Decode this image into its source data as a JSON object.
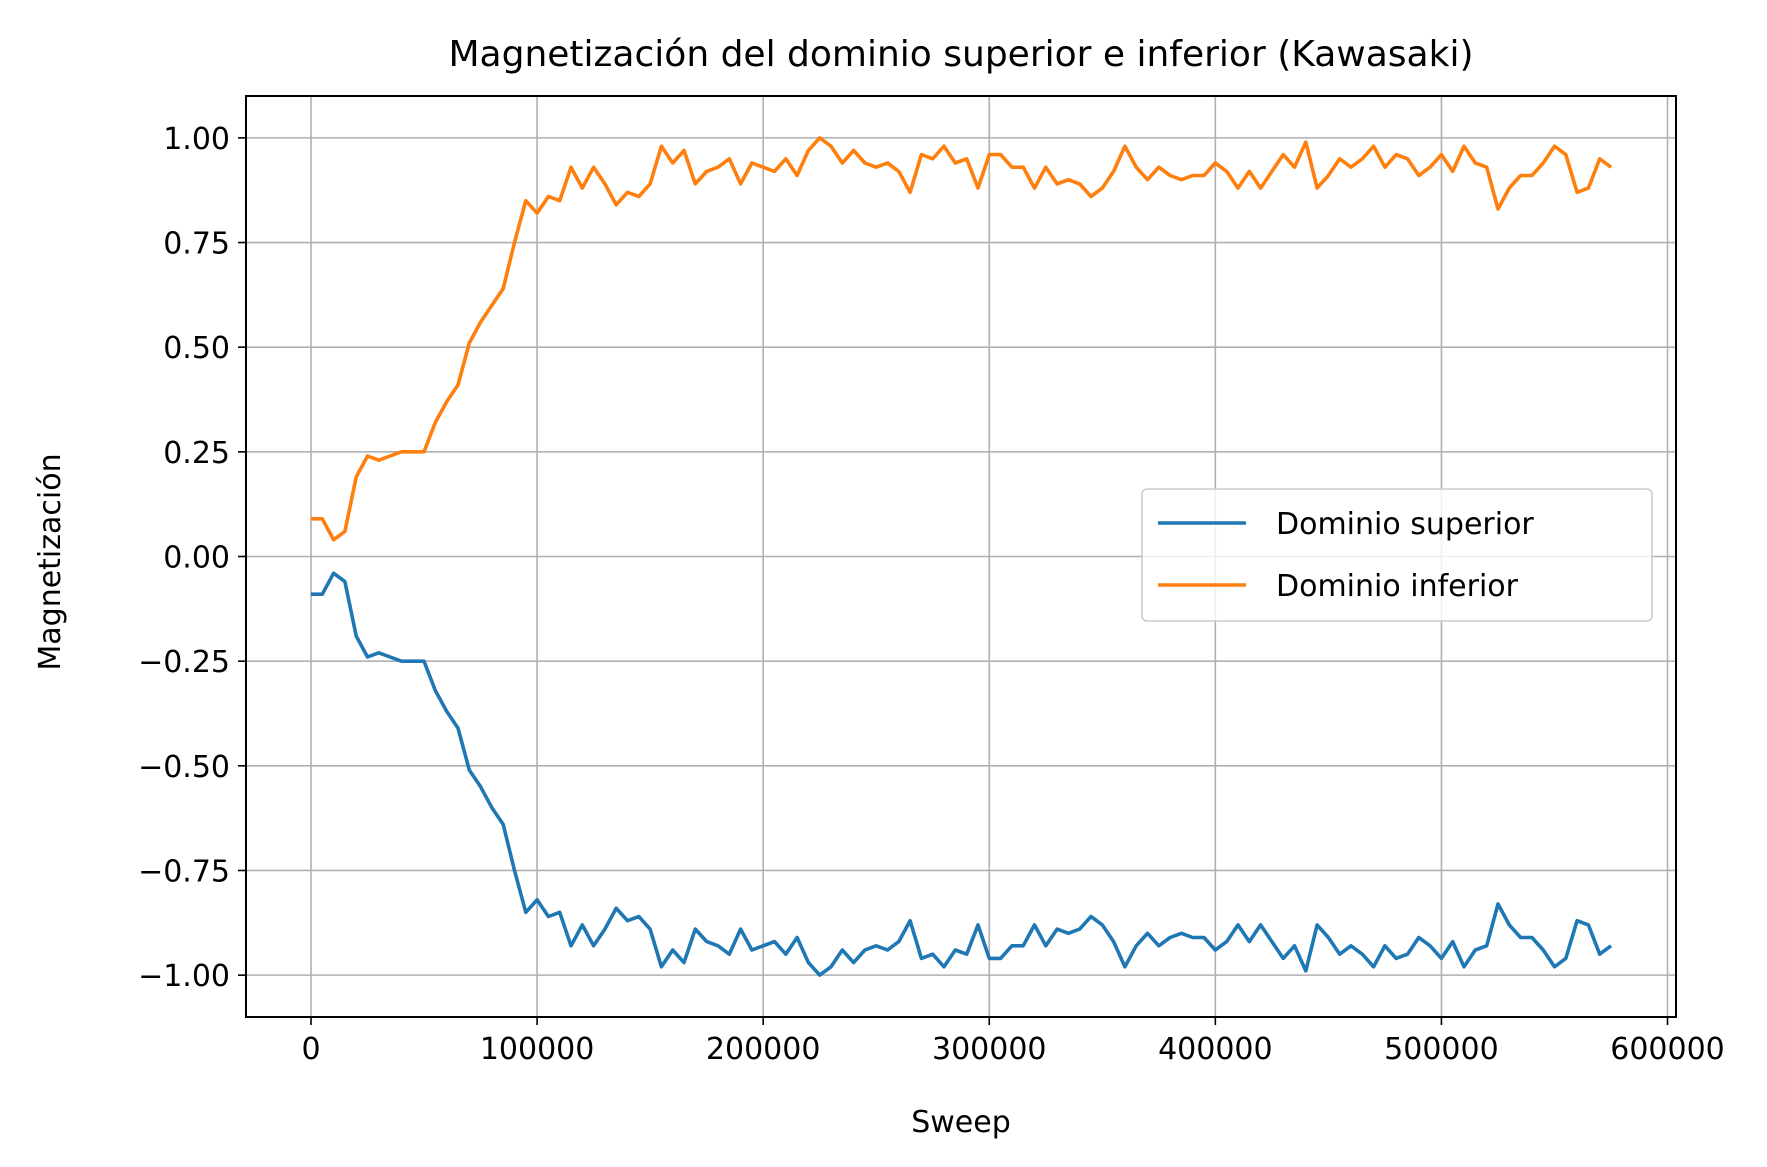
{
  "chart_data": {
    "type": "line",
    "title": "Magnetización del dominio superior e inferior (Kawasaki)",
    "xlabel": "Sweep",
    "ylabel": "Magnetización",
    "xlim": [
      -28750,
      603750
    ],
    "ylim": [
      -1.1,
      1.1
    ],
    "xticks": [
      0,
      100000,
      200000,
      300000,
      400000,
      500000,
      600000
    ],
    "xtick_labels": [
      "0",
      "100000",
      "200000",
      "300000",
      "400000",
      "500000",
      "600000"
    ],
    "yticks": [
      1.0,
      0.75,
      0.5,
      0.25,
      0.0,
      -0.25,
      -0.5,
      -0.75,
      -1.0
    ],
    "ytick_labels": [
      "1.00",
      "0.75",
      "0.50",
      "0.25",
      "0.00",
      "−0.25",
      "−0.50",
      "−0.75",
      "−1.00"
    ],
    "grid": true,
    "legend_position": "center-right",
    "x_step": 5000,
    "series": [
      {
        "name": "Dominio superior",
        "color": "#1f77b4",
        "values": [
          -0.09,
          -0.09,
          -0.04,
          -0.06,
          -0.19,
          -0.24,
          -0.23,
          -0.24,
          -0.25,
          -0.25,
          -0.25,
          -0.32,
          -0.37,
          -0.41,
          -0.51,
          -0.55,
          -0.6,
          -0.64,
          -0.75,
          -0.85,
          -0.82,
          -0.86,
          -0.85,
          -0.93,
          -0.88,
          -0.93,
          -0.89,
          -0.84,
          -0.87,
          -0.86,
          -0.89,
          -0.98,
          -0.94,
          -0.97,
          -0.89,
          -0.92,
          -0.93,
          -0.95,
          -0.89,
          -0.94,
          -0.93,
          -0.92,
          -0.95,
          -0.91,
          -0.97,
          -1.0,
          -0.98,
          -0.94,
          -0.97,
          -0.94,
          -0.93,
          -0.94,
          -0.92,
          -0.87,
          -0.96,
          -0.95,
          -0.98,
          -0.94,
          -0.95,
          -0.88,
          -0.96,
          -0.96,
          -0.93,
          -0.93,
          -0.88,
          -0.93,
          -0.89,
          -0.9,
          -0.89,
          -0.86,
          -0.88,
          -0.92,
          -0.98,
          -0.93,
          -0.9,
          -0.93,
          -0.91,
          -0.9,
          -0.91,
          -0.91,
          -0.94,
          -0.92,
          -0.88,
          -0.92,
          -0.88,
          -0.92,
          -0.96,
          -0.93,
          -0.99,
          -0.88,
          -0.91,
          -0.95,
          -0.93,
          -0.95,
          -0.98,
          -0.93,
          -0.96,
          -0.95,
          -0.91,
          -0.93,
          -0.96,
          -0.92,
          -0.98,
          -0.94,
          -0.93,
          -0.83,
          -0.88,
          -0.91,
          -0.91,
          -0.94,
          -0.98,
          -0.96,
          -0.87,
          -0.88,
          -0.95,
          -0.93
        ]
      },
      {
        "name": "Dominio inferior",
        "color": "#ff7f0e",
        "values": [
          0.09,
          0.09,
          0.04,
          0.06,
          0.19,
          0.24,
          0.23,
          0.24,
          0.25,
          0.25,
          0.25,
          0.32,
          0.37,
          0.41,
          0.51,
          0.56,
          0.6,
          0.64,
          0.75,
          0.85,
          0.82,
          0.86,
          0.85,
          0.93,
          0.88,
          0.93,
          0.89,
          0.84,
          0.87,
          0.86,
          0.89,
          0.98,
          0.94,
          0.97,
          0.89,
          0.92,
          0.93,
          0.95,
          0.89,
          0.94,
          0.93,
          0.92,
          0.95,
          0.91,
          0.97,
          1.0,
          0.98,
          0.94,
          0.97,
          0.94,
          0.93,
          0.94,
          0.92,
          0.87,
          0.96,
          0.95,
          0.98,
          0.94,
          0.95,
          0.88,
          0.96,
          0.96,
          0.93,
          0.93,
          0.88,
          0.93,
          0.89,
          0.9,
          0.89,
          0.86,
          0.88,
          0.92,
          0.98,
          0.93,
          0.9,
          0.93,
          0.91,
          0.9,
          0.91,
          0.91,
          0.94,
          0.92,
          0.88,
          0.92,
          0.88,
          0.92,
          0.96,
          0.93,
          0.99,
          0.88,
          0.91,
          0.95,
          0.93,
          0.95,
          0.98,
          0.93,
          0.96,
          0.95,
          0.91,
          0.93,
          0.96,
          0.92,
          0.98,
          0.94,
          0.93,
          0.83,
          0.88,
          0.91,
          0.91,
          0.94,
          0.98,
          0.96,
          0.87,
          0.88,
          0.95,
          0.93
        ]
      }
    ]
  }
}
